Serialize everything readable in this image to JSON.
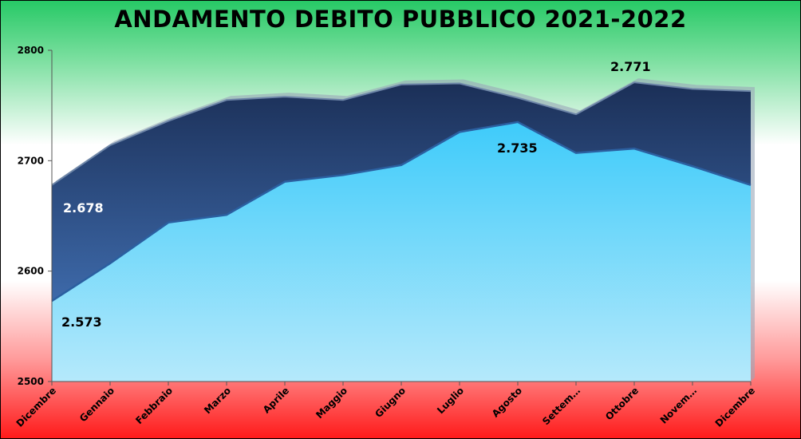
{
  "chart_data": {
    "type": "area",
    "title": "ANDAMENTO DEBITO PUBBLICO 2021-2022",
    "xlabel": "",
    "ylabel": "",
    "ylim": [
      2500,
      2800
    ],
    "yticks": [
      "2500",
      "2600",
      "2700",
      "2800"
    ],
    "categories": [
      "Dicembre",
      "Gennaio",
      "Febbraio",
      "Marzo",
      "Aprile",
      "Maggio",
      "Giugno",
      "Luglio",
      "Agosto",
      "Settem…",
      "Ottobre",
      "Novem…",
      "Dicembre"
    ],
    "series": [
      {
        "values": [
          2678,
          2714,
          2736,
          2755,
          2758,
          2755,
          2769,
          2770,
          2757,
          2742,
          2771,
          2765,
          2763
        ]
      },
      {
        "values": [
          2573,
          2607,
          2644,
          2651,
          2681,
          2687,
          2696,
          2726,
          2735,
          2707,
          2711,
          2695,
          2678
        ]
      }
    ],
    "data_labels": [
      {
        "text": "2.678",
        "series": 0,
        "index": 0,
        "color": "#ffffff"
      },
      {
        "text": "2.573",
        "series": 1,
        "index": 0,
        "color": "#000000"
      },
      {
        "text": "2.735",
        "series": 1,
        "index": 8,
        "color": "#000000"
      },
      {
        "text": "2.771",
        "series": 0,
        "index": 10,
        "color": "#000000"
      }
    ],
    "colors": {
      "upper_top": "#1b2f57",
      "upper_bottom": "#4a7fc8",
      "lower_top": "#3ecbfa",
      "lower_bottom": "#b5e9fb"
    },
    "grid": false,
    "legend": "none"
  }
}
